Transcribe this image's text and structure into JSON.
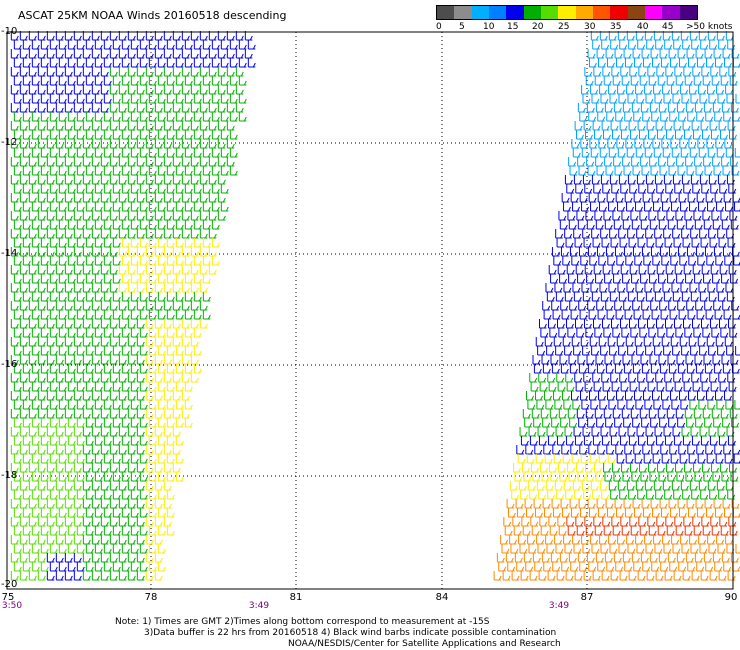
{
  "title": "ASCAT 25KM NOAA Winds 20160518 descending",
  "legend": {
    "colors": [
      "#4d4d4d",
      "#8c8c8c",
      "#00b0ff",
      "#0080ff",
      "#0000ee",
      "#00b000",
      "#55dd00",
      "#ffee00",
      "#ffaa00",
      "#ff5500",
      "#ee0000",
      "#8b4513",
      "#ff00ff",
      "#9900cc",
      "#4b0082"
    ],
    "labels": [
      "0",
      "5",
      "10",
      "15",
      "20",
      "25",
      "30",
      "35",
      "40",
      "45",
      ">50 knots"
    ]
  },
  "axes": {
    "x_ticks": [
      "75",
      "78",
      "81",
      "84",
      "87",
      "90"
    ],
    "y_ticks": [
      "-10",
      "-12",
      "-14",
      "-16",
      "-18",
      "-20"
    ]
  },
  "times": [
    "3:50",
    "3:49",
    "3:49"
  ],
  "notes": {
    "line1": "Note: 1) Times are GMT 2)Times along bottom correspond to measurement at -15S",
    "line2": "3)Data buffer is 22 hrs from 20160518 4) Black wind barbs indicate possible contamination",
    "line3": "NOAA/NESDIS/Center for Satellite Applications and Research"
  }
}
